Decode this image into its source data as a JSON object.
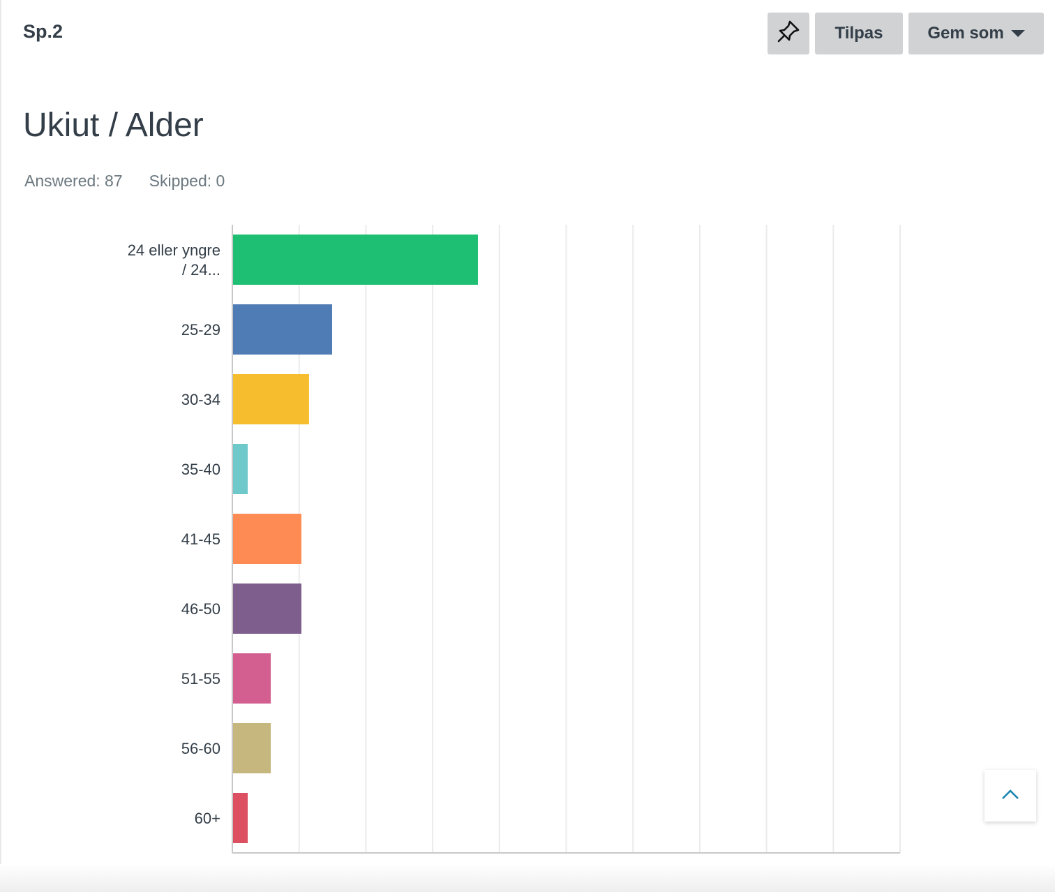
{
  "header": {
    "question_number": "Sp.2",
    "pin_icon": "pushpin-icon",
    "customize_label": "Tilpas",
    "save_as_label": "Gem som",
    "save_as_icon": "caret-down-icon"
  },
  "question": {
    "title": "Ukiut / Alder",
    "answered": "Answered: 87",
    "skipped": "Skipped: 0"
  },
  "scroll_top": {
    "icon": "chevron-up-icon"
  },
  "chart_data": {
    "type": "bar",
    "orientation": "horizontal",
    "title": "Ukiut / Alder",
    "xlabel": "",
    "ylabel": "",
    "categories": [
      [
        "24 eller yngre",
        "/ 24..."
      ],
      [
        "25-29"
      ],
      [
        "30-34"
      ],
      [
        "35-40"
      ],
      [
        "41-45"
      ],
      [
        "46-50"
      ],
      [
        "51-55"
      ],
      [
        "56-60"
      ],
      [
        "60+"
      ]
    ],
    "values": [
      36.78,
      14.94,
      11.49,
      2.3,
      10.34,
      10.34,
      5.75,
      5.75,
      2.3
    ],
    "colors": [
      "#1fbf73",
      "#507cb6",
      "#f6bd2f",
      "#6fc9cb",
      "#fe8b53",
      "#7d5e8d",
      "#d25f90",
      "#c5b77e",
      "#dc5061"
    ],
    "xlim": [
      0,
      100
    ],
    "xticks": [
      "0%",
      "10%",
      "20%",
      "30%",
      "40%",
      "50%",
      "60%",
      "70%",
      "80%",
      "90%",
      "100%"
    ],
    "grid": true,
    "legend": "none"
  }
}
